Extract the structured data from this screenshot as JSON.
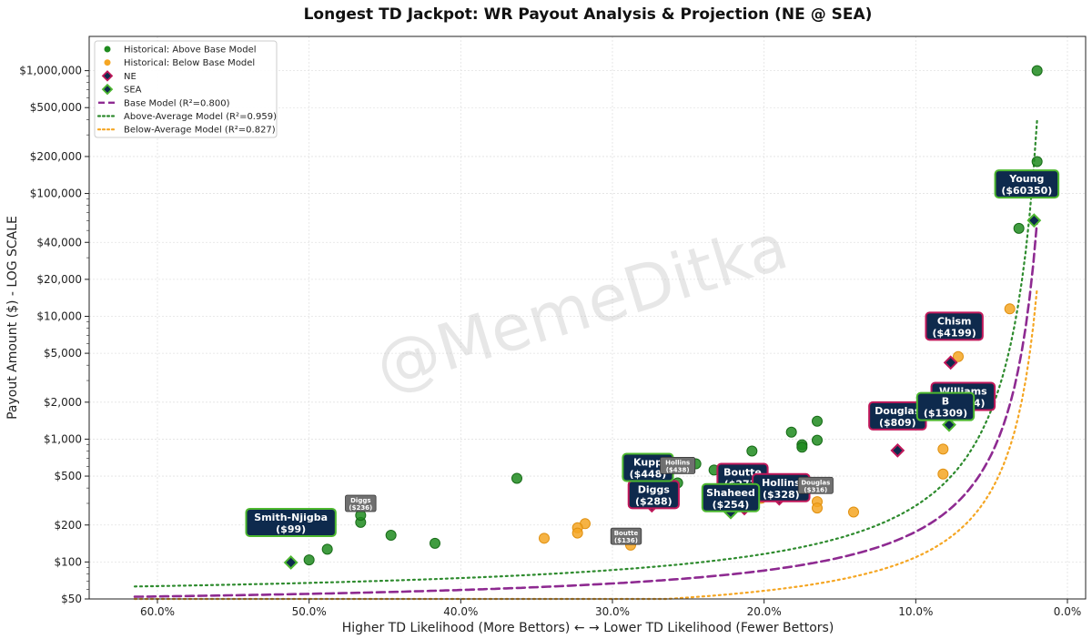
{
  "chart_data": {
    "type": "scatter",
    "title": "Longest TD Jackpot: WR Payout Analysis & Projection (NE @ SEA)",
    "xlabel": "Higher TD Likelihood (More Bettors) ← → Lower TD Likelihood (Fewer Bettors)",
    "ylabel": "Payout Amount ($) - LOG SCALE",
    "x_scale": "linear-reversed",
    "y_scale": "log",
    "xlim": [
      64.5,
      -1.2
    ],
    "ylim": [
      50,
      1900000
    ],
    "x_ticks": [
      60,
      50,
      40,
      30,
      20,
      10,
      0
    ],
    "x_tick_labels": [
      "60.0%",
      "50.0%",
      "40.0%",
      "30.0%",
      "20.0%",
      "10.0%",
      "0.0%"
    ],
    "y_ticks": [
      50,
      100,
      200,
      500,
      1000,
      2000,
      5000,
      10000,
      20000,
      40000,
      100000,
      200000,
      500000,
      1000000
    ],
    "y_tick_labels": [
      "$50",
      "$100",
      "$200",
      "$500",
      "$1,000",
      "$2,000",
      "$5,000",
      "$10,000",
      "$20,000",
      "$40,000",
      "$100,000",
      "$200,000",
      "$500,000",
      "$1,000,000"
    ],
    "grid": true,
    "legend_position": "top-left",
    "watermark": "@MemeDitka",
    "colors": {
      "above": "#1f8b1f",
      "below": "#f5a623",
      "base_model": "#8e2a91",
      "above_model": "#2e8b2e",
      "below_model": "#f5a623",
      "label_bg": "#0e2a4d",
      "ne_border": "#c0185a",
      "sea_border": "#4db82f",
      "small_label_bg": "#707070"
    },
    "legend": [
      {
        "label": "Historical: Above Base Model",
        "kind": "dot",
        "color": "#1f8b1f"
      },
      {
        "label": "Historical: Below Base Model",
        "kind": "dot",
        "color": "#f5a623"
      },
      {
        "label": "NE",
        "kind": "diamond",
        "fill": "#0e2a4d",
        "stroke": "#c0185a"
      },
      {
        "label": "SEA",
        "kind": "diamond",
        "fill": "#0e2a4d",
        "stroke": "#4db82f"
      },
      {
        "label": "Base Model (R²=0.800)",
        "kind": "dash",
        "color": "#8e2a91"
      },
      {
        "label": "Above-Average Model (R²=0.959)",
        "kind": "dot-line",
        "color": "#2e8b2e"
      },
      {
        "label": "Below-Average Model (R²=0.827)",
        "kind": "dot-line",
        "color": "#f5a623"
      }
    ],
    "series": [
      {
        "name": "Historical: Above Base Model",
        "points": [
          [
            2.0,
            1000000
          ],
          [
            2.0,
            182000
          ],
          [
            3.2,
            52000
          ],
          [
            16.5,
            1400
          ],
          [
            16.5,
            980
          ],
          [
            17.5,
            900
          ],
          [
            17.5,
            860
          ],
          [
            18.2,
            1140
          ],
          [
            20.8,
            800
          ],
          [
            23.3,
            560
          ],
          [
            24.5,
            630
          ],
          [
            25.7,
            440
          ],
          [
            36.3,
            480
          ],
          [
            41.7,
            142
          ],
          [
            44.6,
            165
          ],
          [
            46.6,
            210
          ],
          [
            46.6,
            240
          ],
          [
            48.8,
            127
          ],
          [
            50.0,
            104
          ]
        ]
      },
      {
        "name": "Historical: Below Base Model",
        "points": [
          [
            3.8,
            11500
          ],
          [
            7.2,
            4700
          ],
          [
            8.2,
            830
          ],
          [
            8.2,
            520
          ],
          [
            14.1,
            255
          ],
          [
            16.5,
            310
          ],
          [
            16.5,
            275
          ],
          [
            18.2,
            370
          ],
          [
            20.2,
            330
          ],
          [
            28.8,
            137
          ],
          [
            31.8,
            205
          ],
          [
            32.3,
            190
          ],
          [
            32.3,
            172
          ],
          [
            34.5,
            156
          ]
        ]
      },
      {
        "name": "NE",
        "points": [
          {
            "x": 7.7,
            "y": 4199,
            "label": "Chism",
            "value": "($4199)"
          },
          {
            "x": 11.2,
            "y": 809,
            "label": "Douglas",
            "value": "($809)"
          },
          {
            "x": 7.0,
            "y": 1694,
            "label": "Williams",
            "value": "($1694)"
          },
          {
            "x": 21.3,
            "y": 273,
            "label": "Boutte",
            "value": "($273)"
          },
          {
            "x": 19.0,
            "y": 328,
            "label": "Hollins",
            "value": "($328)"
          },
          {
            "x": 27.4,
            "y": 288,
            "label": "Diggs",
            "value": "($288)"
          }
        ]
      },
      {
        "name": "SEA",
        "points": [
          {
            "x": 2.2,
            "y": 60350,
            "label": "Young",
            "value": "($60350)"
          },
          {
            "x": 7.8,
            "y": 1309,
            "label": "B",
            "value": "($1309)"
          },
          {
            "x": 27.9,
            "y": 448,
            "label": "Kupp",
            "value": "($448)"
          },
          {
            "x": 22.2,
            "y": 254,
            "label": "Shaheed",
            "value": "($254)"
          },
          {
            "x": 51.2,
            "y": 99,
            "label": "Smith-Njigba",
            "value": "($99)"
          }
        ]
      }
    ],
    "small_labels": [
      {
        "label": "Diggs",
        "value": "($236)"
      },
      {
        "label": "Hollins",
        "value": "($438)"
      },
      {
        "label": "Boutte",
        "value": "($136)"
      },
      {
        "label": "Douglas",
        "value": "($316)"
      }
    ],
    "models": [
      {
        "name": "Base Model (R²=0.800)",
        "y_at_x62": 52,
        "y_at_x2": 60000
      },
      {
        "name": "Above-Average Model (R²=0.959)",
        "y_at_x62": 63,
        "y_at_x2": 400000
      },
      {
        "name": "Below-Average Model (R²=0.827)",
        "y_at_x62": 38,
        "y_at_x2": 17000
      }
    ]
  }
}
